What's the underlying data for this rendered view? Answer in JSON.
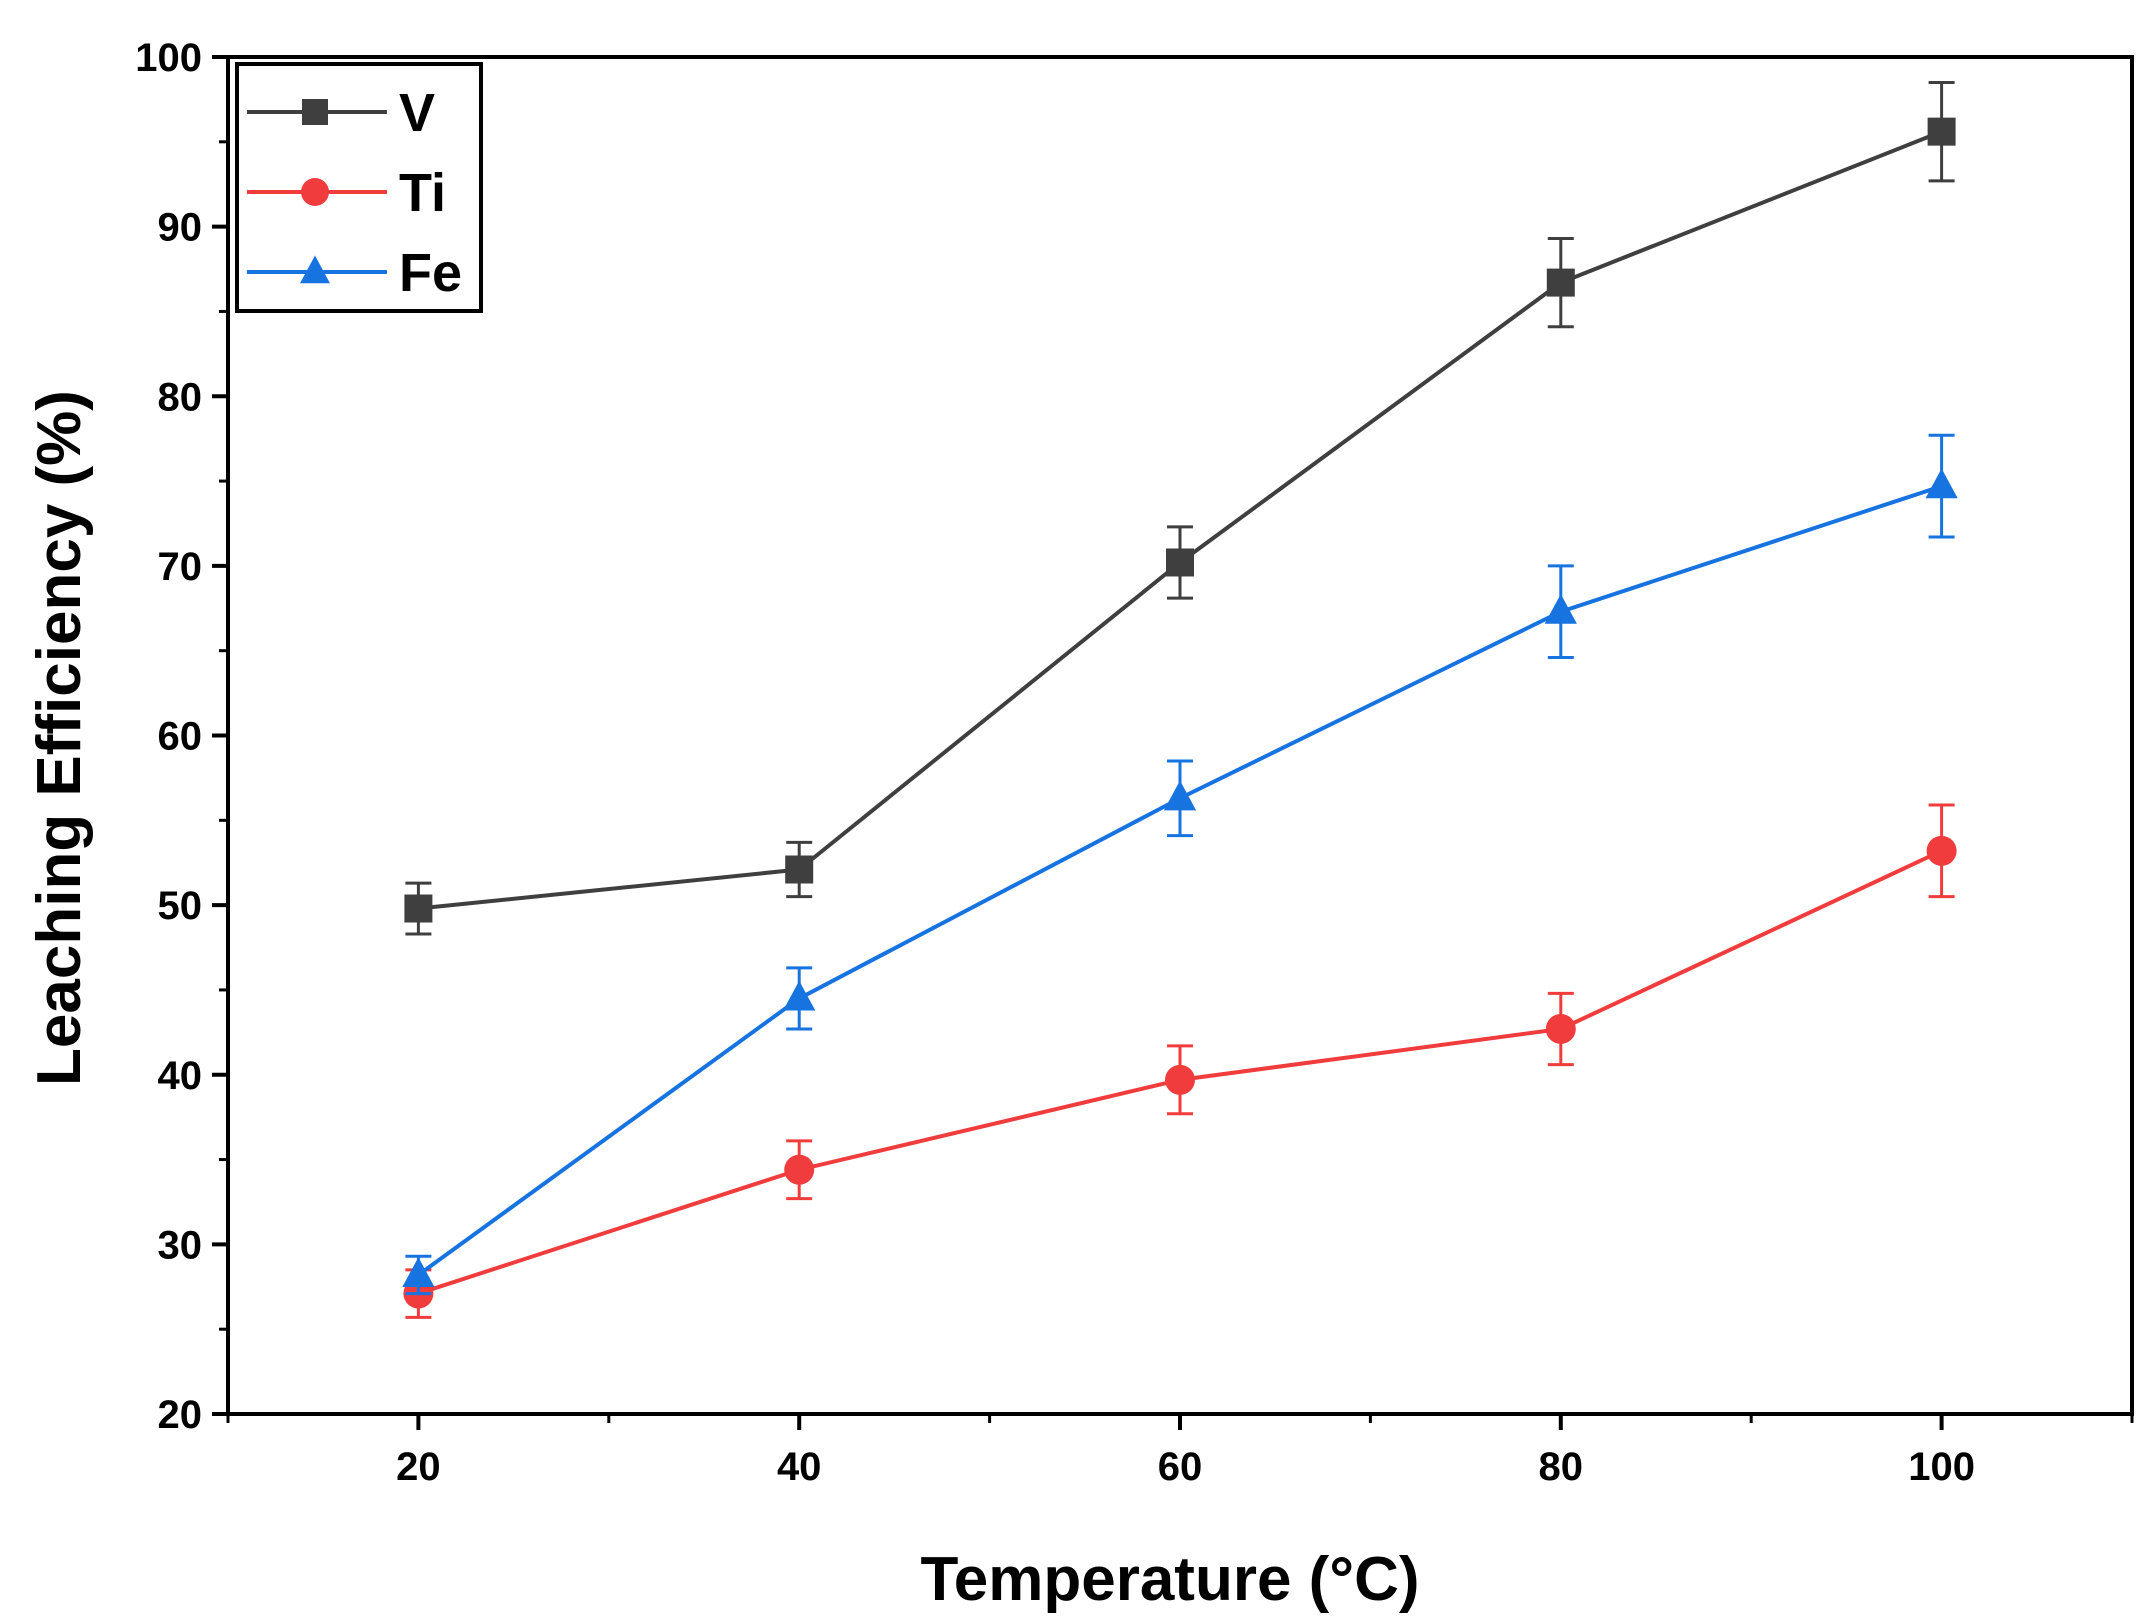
{
  "chart_data": {
    "type": "line",
    "xlabel": "Temperature (°C)",
    "ylabel": "Leaching Efficiency (%)",
    "xlim": [
      10,
      110
    ],
    "ylim": [
      20,
      100
    ],
    "x_ticks": [
      20,
      40,
      60,
      80,
      100
    ],
    "y_ticks": [
      20,
      30,
      40,
      50,
      60,
      70,
      80,
      90,
      100
    ],
    "grid": false,
    "legend_position": "top-left",
    "x": [
      20,
      40,
      60,
      80,
      100
    ],
    "series": [
      {
        "name": "V",
        "color": "#3f3f3f",
        "marker": "square",
        "values": [
          49.8,
          52.1,
          70.2,
          86.7,
          95.6
        ],
        "errors": [
          1.5,
          1.6,
          2.1,
          2.6,
          2.9
        ]
      },
      {
        "name": "Ti",
        "color": "#f03c3c",
        "marker": "circle",
        "values": [
          27.1,
          34.4,
          39.7,
          42.7,
          53.2
        ],
        "errors": [
          1.4,
          1.7,
          2.0,
          2.1,
          2.7
        ]
      },
      {
        "name": "Fe",
        "color": "#1673e0",
        "marker": "triangle",
        "values": [
          28.2,
          44.5,
          56.3,
          67.3,
          74.7
        ],
        "errors": [
          1.1,
          1.8,
          2.2,
          2.7,
          3.0
        ]
      }
    ]
  }
}
